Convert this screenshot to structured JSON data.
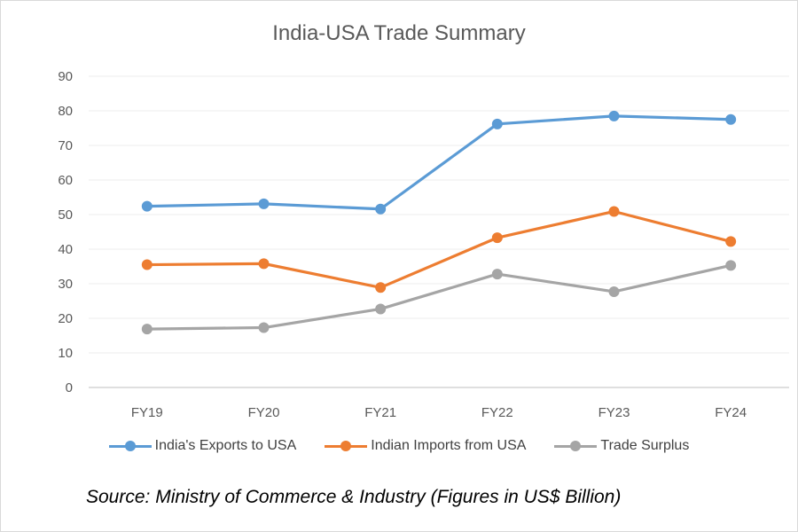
{
  "chart_data": {
    "type": "line",
    "title": "India-USA Trade Summary",
    "categories": [
      "FY19",
      "FY20",
      "FY21",
      "FY22",
      "FY23",
      "FY24"
    ],
    "ylim": [
      0,
      90
    ],
    "yticks": [
      0,
      10,
      20,
      30,
      40,
      50,
      60,
      70,
      80,
      90
    ],
    "grid": true,
    "legend_position": "bottom",
    "series": [
      {
        "name": "India's Exports to USA",
        "color": "#5B9BD5",
        "values": [
          52.4,
          53.1,
          51.6,
          76.2,
          78.5,
          77.5
        ]
      },
      {
        "name": "Indian Imports from USA",
        "color": "#ED7D31",
        "values": [
          35.5,
          35.8,
          28.9,
          43.3,
          50.9,
          42.2
        ]
      },
      {
        "name": "Trade Surplus",
        "color": "#A5A5A5",
        "values": [
          16.9,
          17.3,
          22.7,
          32.8,
          27.7,
          35.3
        ]
      }
    ]
  },
  "source": "Source: Ministry of Commerce & Industry (Figures in US$ Billion)"
}
